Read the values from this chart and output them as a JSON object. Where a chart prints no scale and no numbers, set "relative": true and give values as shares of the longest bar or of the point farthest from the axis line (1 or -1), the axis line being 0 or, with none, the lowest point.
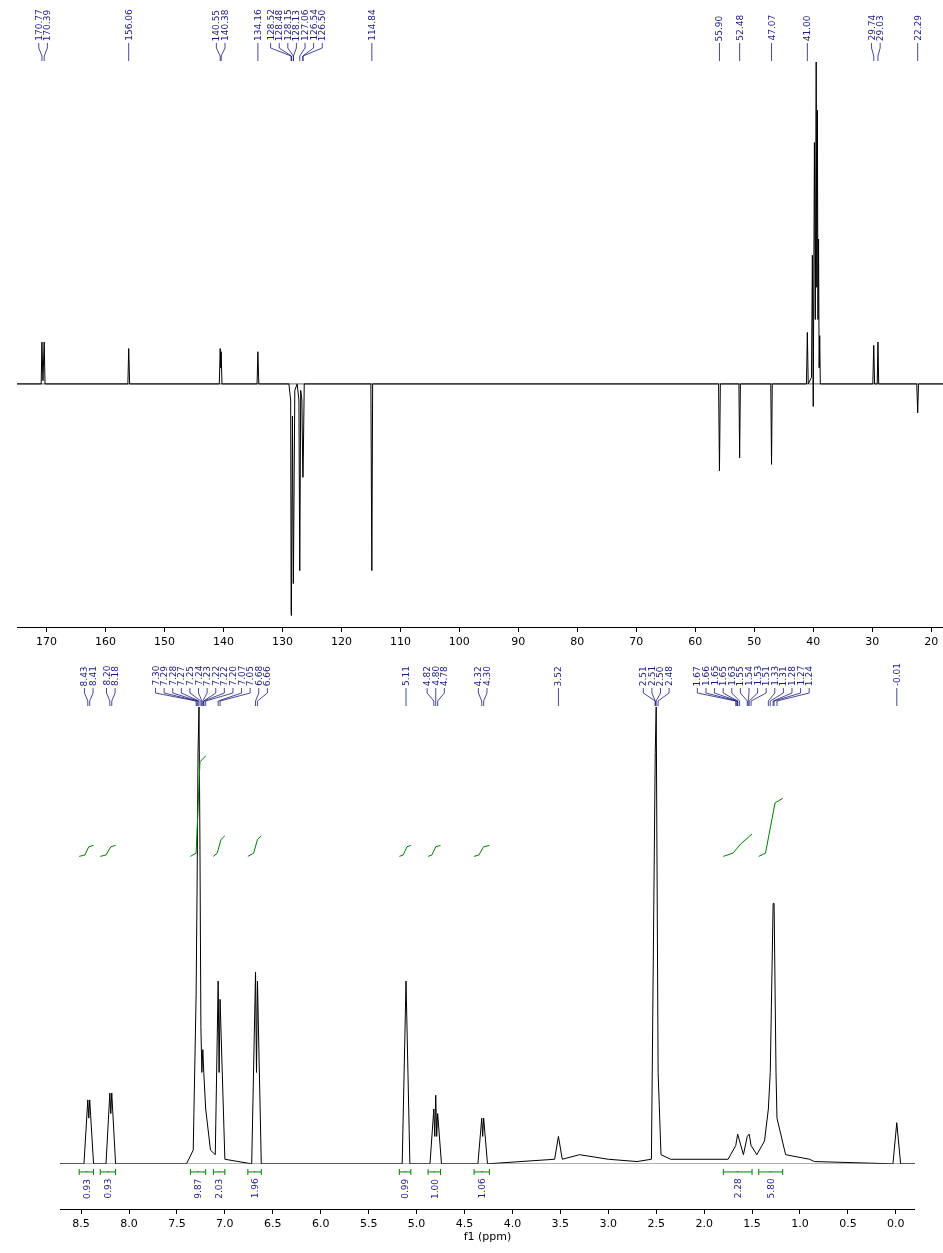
{
  "chart_data": [
    {
      "type": "line",
      "relative": true,
      "grid": false,
      "tick_labels": "x",
      "marker": "none",
      "line_style": "solid",
      "xlim": [
        175,
        18
      ],
      "xticks": [
        170,
        160,
        150,
        140,
        130,
        120,
        110,
        100,
        90,
        80,
        70,
        60,
        50,
        40,
        30,
        20
      ],
      "series": [
        {
          "color": "#000000",
          "x": [
            175,
            170.9,
            170.77,
            170.6,
            170.39,
            170.25,
            156.2,
            156.06,
            155.9,
            140.7,
            140.55,
            140.45,
            140.38,
            140.25,
            134.3,
            134.16,
            134.0,
            128.9,
            128.6,
            128.52,
            128.48,
            128.3,
            128.15,
            128.13,
            127.9,
            127.5,
            127.2,
            127.06,
            126.9,
            126.7,
            126.54,
            126.5,
            126.3,
            115.0,
            114.84,
            114.7,
            56.05,
            55.9,
            55.75,
            52.6,
            52.48,
            52.35,
            47.2,
            47.07,
            46.95,
            41.15,
            41.0,
            40.85,
            40.3,
            40.15,
            40.0,
            39.8,
            39.65,
            39.5,
            39.4,
            39.3,
            39.2,
            39.1,
            39.0,
            38.9,
            38.8,
            29.9,
            29.74,
            29.6,
            29.15,
            29.03,
            28.9,
            22.45,
            22.29,
            22.15,
            18
          ],
          "values": [
            0,
            0,
            0.13,
            0.01,
            0.13,
            0,
            0,
            0.11,
            0,
            0,
            0.11,
            0.05,
            0.1,
            0,
            0,
            0.1,
            0,
            0,
            -0.05,
            -0.7,
            -0.72,
            -0.1,
            -0.62,
            -0.6,
            -0.02,
            0,
            -0.05,
            -0.58,
            -0.02,
            -0.05,
            -0.29,
            -0.29,
            0,
            0,
            -0.58,
            0,
            0,
            -0.27,
            0,
            0,
            -0.23,
            0,
            0,
            -0.25,
            0,
            0,
            0.16,
            0,
            0.02,
            0.4,
            -0.07,
            0.75,
            0.2,
            1,
            0.3,
            0.85,
            0.2,
            0.45,
            0.05,
            0.15,
            0,
            0,
            0.12,
            0,
            0,
            0.13,
            0,
            0,
            -0.09,
            0,
            0
          ]
        }
      ],
      "annotations": [
        {
          "text": "170.77",
          "x": 170.77
        },
        {
          "text": "170.39",
          "x": 170.39
        },
        {
          "text": "156.06",
          "x": 156.06
        },
        {
          "text": "140.55",
          "x": 140.55
        },
        {
          "text": "140.38",
          "x": 140.38
        },
        {
          "text": "134.16",
          "x": 134.16
        },
        {
          "text": "128.52",
          "x": 128.52
        },
        {
          "text": "128.48",
          "x": 128.48
        },
        {
          "text": "128.15",
          "x": 128.15
        },
        {
          "text": "128.13",
          "x": 128.13
        },
        {
          "text": "127.06",
          "x": 127.06
        },
        {
          "text": "126.54",
          "x": 126.54
        },
        {
          "text": "126.50",
          "x": 126.5
        },
        {
          "text": "114.84",
          "x": 114.84
        },
        {
          "text": "55.90",
          "x": 55.9
        },
        {
          "text": "52.48",
          "x": 52.48
        },
        {
          "text": "47.07",
          "x": 47.07
        },
        {
          "text": "41.00",
          "x": 41.0
        },
        {
          "text": "29.74",
          "x": 29.74
        },
        {
          "text": "29.03",
          "x": 29.03
        },
        {
          "text": "22.29",
          "x": 22.29
        }
      ]
    },
    {
      "type": "line",
      "relative": true,
      "grid": false,
      "tick_labels": "x",
      "marker": "none",
      "line_style": "solid",
      "xlabel": "f1 (ppm)",
      "xlim": [
        8.72,
        -0.2
      ],
      "xticks": [
        8.5,
        {
          "value": 8,
          "label": "8.0"
        },
        7.5,
        {
          "value": 7,
          "label": "7.0"
        },
        6.5,
        {
          "value": 6,
          "label": "6.0"
        },
        5.5,
        {
          "value": 5,
          "label": "5.0"
        },
        4.5,
        {
          "value": 4,
          "label": "4.0"
        },
        3.5,
        {
          "value": 3,
          "label": "3.0"
        },
        2.5,
        {
          "value": 2,
          "label": "2.0"
        },
        1.5,
        {
          "value": 1,
          "label": "1.0"
        },
        0.5,
        {
          "value": 0,
          "label": "0.0"
        }
      ],
      "series": [
        {
          "color": "#000000",
          "x": [
            8.72,
            8.47,
            8.43,
            8.42,
            8.41,
            8.37,
            8.24,
            8.2,
            8.19,
            8.18,
            8.14,
            7.4,
            7.33,
            7.3,
            7.29,
            7.28,
            7.27,
            7.26,
            7.25,
            7.24,
            7.23,
            7.22,
            7.2,
            7.15,
            7.1,
            7.07,
            7.06,
            7.05,
            7.0,
            6.72,
            6.68,
            6.67,
            6.66,
            6.62,
            5.15,
            5.11,
            5.07,
            4.86,
            4.82,
            4.81,
            4.8,
            4.79,
            4.78,
            4.74,
            4.36,
            4.32,
            4.31,
            4.3,
            4.26,
            3.56,
            3.52,
            3.48,
            3.3,
            3.0,
            2.7,
            2.55,
            2.51,
            2.5,
            2.48,
            2.45,
            2.35,
            1.75,
            1.67,
            1.65,
            1.63,
            1.59,
            1.55,
            1.53,
            1.51,
            1.45,
            1.37,
            1.33,
            1.31,
            1.28,
            1.27,
            1.25,
            1.24,
            1.15,
            0.9,
            0.85,
            0.03,
            -0.01,
            -0.05,
            -0.2
          ],
          "values": [
            0,
            0,
            0.14,
            0.1,
            0.14,
            0,
            0,
            0.155,
            0.11,
            0.155,
            0,
            0,
            0.03,
            0.37,
            0.6,
            0.9,
            1,
            0.7,
            0.3,
            0.2,
            0.25,
            0.2,
            0.12,
            0.03,
            0.02,
            0.4,
            0.2,
            0.36,
            0.01,
            0,
            0.42,
            0.2,
            0.4,
            0,
            0,
            0.4,
            0,
            0,
            0.12,
            0.06,
            0.15,
            0.06,
            0.11,
            0,
            0,
            0.1,
            0.06,
            0.1,
            0,
            0.01,
            0.06,
            0.01,
            0.02,
            0.01,
            0.005,
            0.01,
            0.9,
            1,
            0.2,
            0.02,
            0.01,
            0.01,
            0.04,
            0.065,
            0.05,
            0.02,
            0.06,
            0.065,
            0.04,
            0.02,
            0.05,
            0.12,
            0.2,
            0.57,
            0.57,
            0.2,
            0.1,
            0.02,
            0.01,
            0.005,
            0,
            0.09,
            0,
            0
          ]
        },
        {
          "color": "#008000",
          "x": [
            8.52,
            8.46,
            8.42,
            8.37,
            8.36,
            8.3,
            8.24,
            8.19,
            8.14,
            8.13,
            7.36,
            7.3,
            7.26,
            7.2,
            7.19,
            7.12,
            7.08,
            7.04,
            7.0,
            6.99,
            6.76,
            6.7,
            6.66,
            6.62,
            6.61,
            5.18,
            5.14,
            5.1,
            5.06,
            5.05,
            4.88,
            4.84,
            4.8,
            4.75,
            4.74,
            4.4,
            4.35,
            4.3,
            4.24,
            4.23,
            1.8,
            1.7,
            1.62,
            1.5,
            1.49,
            1.43,
            1.36,
            1.26,
            1.18
          ],
          "values": [
            0.673,
            0.676,
            0.694,
            0.697,
            null,
            0.673,
            0.676,
            0.694,
            0.697,
            null,
            0.673,
            0.68,
            0.88,
            0.893,
            null,
            0.673,
            0.68,
            0.71,
            0.718,
            null,
            0.673,
            0.68,
            0.71,
            0.718,
            null,
            0.673,
            0.676,
            0.694,
            0.697,
            null,
            0.673,
            0.676,
            0.694,
            0.697,
            null,
            0.673,
            0.676,
            0.694,
            0.697,
            null,
            0.673,
            0.68,
            0.7,
            0.722,
            null,
            0.673,
            0.68,
            0.79,
            0.8
          ]
        }
      ],
      "annotations": [
        {
          "text": "8.43",
          "x": 8.43
        },
        {
          "text": "8.41",
          "x": 8.41
        },
        {
          "text": "8.20",
          "x": 8.2
        },
        {
          "text": "8.18",
          "x": 8.18
        },
        {
          "text": "7.30",
          "x": 7.3
        },
        {
          "text": "7.29",
          "x": 7.29
        },
        {
          "text": "7.28",
          "x": 7.28
        },
        {
          "text": "7.27",
          "x": 7.27
        },
        {
          "text": "7.25",
          "x": 7.25
        },
        {
          "text": "7.24",
          "x": 7.24
        },
        {
          "text": "7.23",
          "x": 7.23
        },
        {
          "text": "7.22",
          "x": 7.22
        },
        {
          "text": "7.22",
          "x": 7.22
        },
        {
          "text": "7.20",
          "x": 7.2
        },
        {
          "text": "7.07",
          "x": 7.07
        },
        {
          "text": "7.05",
          "x": 7.05
        },
        {
          "text": "6.68",
          "x": 6.68
        },
        {
          "text": "6.66",
          "x": 6.66
        },
        {
          "text": "5.11",
          "x": 5.11
        },
        {
          "text": "4.82",
          "x": 4.82
        },
        {
          "text": "4.80",
          "x": 4.8
        },
        {
          "text": "4.78",
          "x": 4.78
        },
        {
          "text": "4.32",
          "x": 4.32
        },
        {
          "text": "4.30",
          "x": 4.3
        },
        {
          "text": "3.52",
          "x": 3.52
        },
        {
          "text": "2.51",
          "x": 2.51
        },
        {
          "text": "2.51",
          "x": 2.51
        },
        {
          "text": "2.50",
          "x": 2.5
        },
        {
          "text": "2.48",
          "x": 2.48
        },
        {
          "text": "1.67",
          "x": 1.67
        },
        {
          "text": "1.66",
          "x": 1.66
        },
        {
          "text": "1.65",
          "x": 1.65
        },
        {
          "text": "1.65",
          "x": 1.65
        },
        {
          "text": "1.63",
          "x": 1.63
        },
        {
          "text": "1.55",
          "x": 1.55
        },
        {
          "text": "1.54",
          "x": 1.54
        },
        {
          "text": "1.53",
          "x": 1.53
        },
        {
          "text": "1.51",
          "x": 1.51
        },
        {
          "text": "1.33",
          "x": 1.33
        },
        {
          "text": "1.31",
          "x": 1.31
        },
        {
          "text": "1.28",
          "x": 1.28
        },
        {
          "text": "1.27",
          "x": 1.27
        },
        {
          "text": "1.24",
          "x": 1.24
        },
        {
          "text": "-0.01",
          "x": -0.01
        },
        "0.93",
        "0.93",
        "9.87",
        "2.03",
        "1.96",
        "0.99",
        "1.00",
        "1.06",
        "2.28",
        "5.80"
      ]
    }
  ]
}
